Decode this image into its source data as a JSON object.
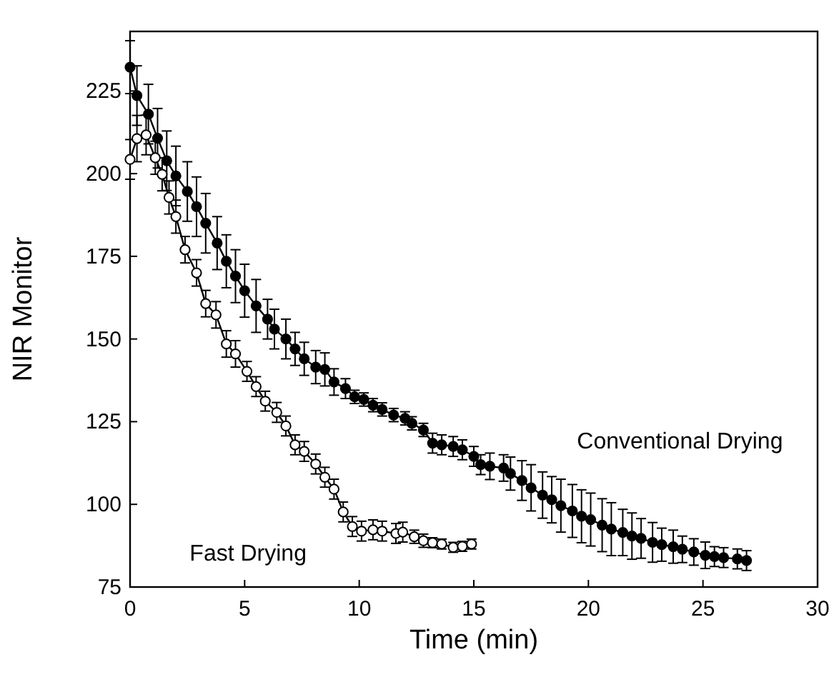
{
  "chart_data": {
    "type": "line",
    "xlabel": "Time (min)",
    "ylabel": "NIR Monitor",
    "xlim": [
      0,
      30
    ],
    "ylim": [
      75,
      243
    ],
    "xticks": [
      0,
      5,
      10,
      15,
      20,
      25,
      30
    ],
    "yticks": [
      75,
      100,
      125,
      150,
      175,
      200,
      225
    ],
    "grid": false,
    "marker": "circle",
    "line_style": "solid",
    "annotations": [
      "Fast Drying",
      "Conventional Drying"
    ],
    "series": [
      {
        "color": "#000000",
        "x": [
          0,
          0.3,
          0.8,
          1.2,
          1.6,
          2.0,
          2.5,
          2.9,
          3.3,
          3.8,
          4.2,
          4.6,
          5.0,
          5.5,
          6.0,
          6.3,
          6.8,
          7.2,
          7.6,
          8.1,
          8.5,
          8.9,
          9.4,
          9.8,
          10.2,
          10.6,
          11.0,
          11.5,
          12.0,
          12.3,
          12.8,
          13.2,
          13.6,
          14.1,
          14.5,
          15.0,
          15.3,
          15.7,
          16.3,
          16.6,
          17.1,
          17.5,
          18.0,
          18.4,
          18.8,
          19.3,
          19.7,
          20.1,
          20.6,
          21.0,
          21.5,
          21.9,
          22.3,
          22.8,
          23.2,
          23.7,
          24.1,
          24.6,
          25.1,
          25.5,
          25.9,
          26.5,
          26.9
        ],
        "values": [
          232.2,
          223.6,
          218,
          210.7,
          203.9,
          199.3,
          194.6,
          190,
          185,
          179,
          173.5,
          169,
          164.6,
          160,
          156,
          153,
          150,
          147,
          144,
          141.5,
          140.8,
          137,
          135,
          132.5,
          131.7,
          130,
          128.7,
          127,
          126,
          124.5,
          122.5,
          118.5,
          118,
          117.5,
          116.5,
          114.5,
          112,
          111.5,
          111,
          109.3,
          107.2,
          105,
          102.8,
          101.4,
          99.6,
          98,
          96.4,
          95.4,
          93.7,
          92.5,
          91.5,
          90.4,
          89.7,
          88.5,
          87.8,
          87.2,
          86.4,
          85.6,
          84.6,
          84.2,
          83.9,
          83.5,
          83
        ],
        "errors": [
          8,
          9,
          9,
          9,
          9,
          9,
          9,
          9,
          9,
          8,
          8,
          8,
          8,
          8,
          6,
          6,
          6,
          5,
          5,
          5,
          5,
          4,
          3,
          2,
          2,
          2,
          2,
          2,
          2,
          2,
          2,
          3,
          3,
          3,
          3,
          3,
          3,
          4,
          4,
          5,
          6,
          7,
          7,
          7,
          8,
          8,
          8,
          8,
          8,
          8,
          7,
          7,
          6,
          6,
          5,
          5,
          4,
          4,
          4,
          3,
          3,
          3,
          3
        ]
      },
      {
        "color": "#000000",
        "x": [
          0,
          0.3,
          0.7,
          1.1,
          1.4,
          1.7,
          2.0,
          2.4,
          2.9,
          3.3,
          3.75,
          4.2,
          4.6,
          5.1,
          5.5,
          5.9,
          6.4,
          6.8,
          7.2,
          7.6,
          8.1,
          8.5,
          8.9,
          9.3,
          9.7,
          10.1,
          10.6,
          11.0,
          11.6,
          11.9,
          12.4,
          12.8,
          13.2,
          13.6,
          14.1,
          14.5,
          14.9
        ],
        "values": [
          204.3,
          210.6,
          211.7,
          204.8,
          199.8,
          192.8,
          187,
          177,
          170,
          160.7,
          157.3,
          148.5,
          145.5,
          140.2,
          135.6,
          131.2,
          127.8,
          123.7,
          118,
          116,
          112.2,
          108.2,
          104.6,
          97.7,
          93.3,
          91.9,
          92.3,
          91.9,
          91.2,
          91.6,
          90.2,
          89,
          88.4,
          88,
          87,
          87.3,
          88
        ],
        "errors": [
          6,
          7,
          6,
          5,
          5,
          5,
          5,
          4,
          4,
          4,
          4,
          4,
          4,
          3,
          3,
          3,
          3,
          3,
          3,
          3,
          3,
          3,
          3,
          3,
          3,
          3,
          3,
          3,
          3,
          3,
          2,
          2,
          1.5,
          1.5,
          1.5,
          1.5,
          1.5
        ]
      }
    ]
  }
}
